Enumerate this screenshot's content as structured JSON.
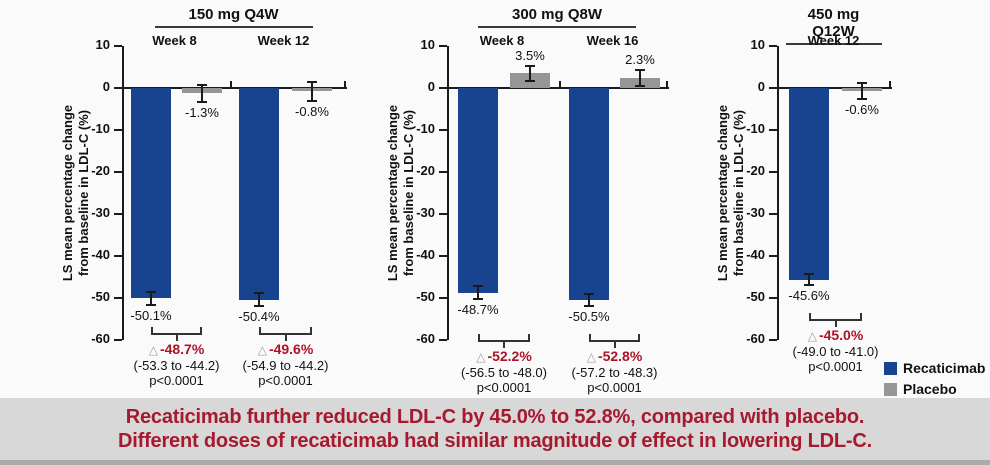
{
  "banner": {
    "line1": "Recaticimab further reduced LDL-C by 45.0% to 52.8%, compared with placebo.",
    "line2": "Different doses of recaticimab had similar magnitude of effect in lowering LDL-C.",
    "text_color": "#A6192E",
    "background": "#D8D8D8",
    "bottom_strip_color": "#ABABAB"
  },
  "legend": {
    "items": [
      {
        "label": "Recaticimab",
        "color": "#17438F"
      },
      {
        "label": "Placebo",
        "color": "#969696"
      }
    ]
  },
  "chart_data": {
    "type": "bar",
    "ylabel_line1": "LS mean percentage change",
    "ylabel_line2": "from baseline in LDL-C (%)",
    "ylabel": "LS mean percentage change from baseline in LDL-C (%)",
    "ylim": [
      -60,
      10
    ],
    "yticks": [
      10,
      0,
      -10,
      -20,
      -30,
      -40,
      -50,
      -60
    ],
    "grid": false,
    "legend_position": "bottom-right",
    "series": [
      {
        "name": "Recaticimab",
        "color": "#17438F"
      },
      {
        "name": "Placebo",
        "color": "#969696"
      }
    ],
    "diff_color": "#B01226",
    "triangle_glyph": "△",
    "panels": [
      {
        "title": "150 mg Q4W",
        "groups": [
          {
            "week": "Week 8",
            "recaticimab": -50.1,
            "recaticimab_label": "-50.1%",
            "recaticimab_err": 1.5,
            "placebo": -1.3,
            "placebo_label": "-1.3%",
            "placebo_err": 2.1,
            "diff_label": "-48.7%",
            "ci_label": "(-53.3 to -44.2)",
            "p_label": "p<0.0001"
          },
          {
            "week": "Week 12",
            "recaticimab": -50.4,
            "recaticimab_label": "-50.4%",
            "recaticimab_err": 1.5,
            "placebo": -0.8,
            "placebo_label": "-0.8%",
            "placebo_err": 2.2,
            "diff_label": "-49.6%",
            "ci_label": "(-54.9 to -44.2)",
            "p_label": "p<0.0001"
          }
        ]
      },
      {
        "title": "300 mg Q8W",
        "groups": [
          {
            "week": "Week 8",
            "recaticimab": -48.7,
            "recaticimab_label": "-48.7%",
            "recaticimab_err": 1.5,
            "placebo": 3.5,
            "placebo_label": "3.5%",
            "placebo_err": 1.8,
            "diff_label": "-52.2%",
            "ci_label": "(-56.5 to -48.0)",
            "p_label": "p<0.0001"
          },
          {
            "week": "Week 16",
            "recaticimab": -50.5,
            "recaticimab_label": "-50.5%",
            "recaticimab_err": 1.4,
            "placebo": 2.3,
            "placebo_label": "2.3%",
            "placebo_err": 1.9,
            "diff_label": "-52.8%",
            "ci_label": "(-57.2 to -48.3)",
            "p_label": "p<0.0001"
          }
        ]
      },
      {
        "title": "450 mg Q12W",
        "groups": [
          {
            "week": "Week 12",
            "recaticimab": -45.6,
            "recaticimab_label": "-45.6%",
            "recaticimab_err": 1.3,
            "placebo": -0.6,
            "placebo_label": "-0.6%",
            "placebo_err": 1.9,
            "diff_label": "-45.0%",
            "ci_label": "(-49.0 to -41.0)",
            "p_label": "p<0.0001"
          }
        ]
      }
    ]
  }
}
